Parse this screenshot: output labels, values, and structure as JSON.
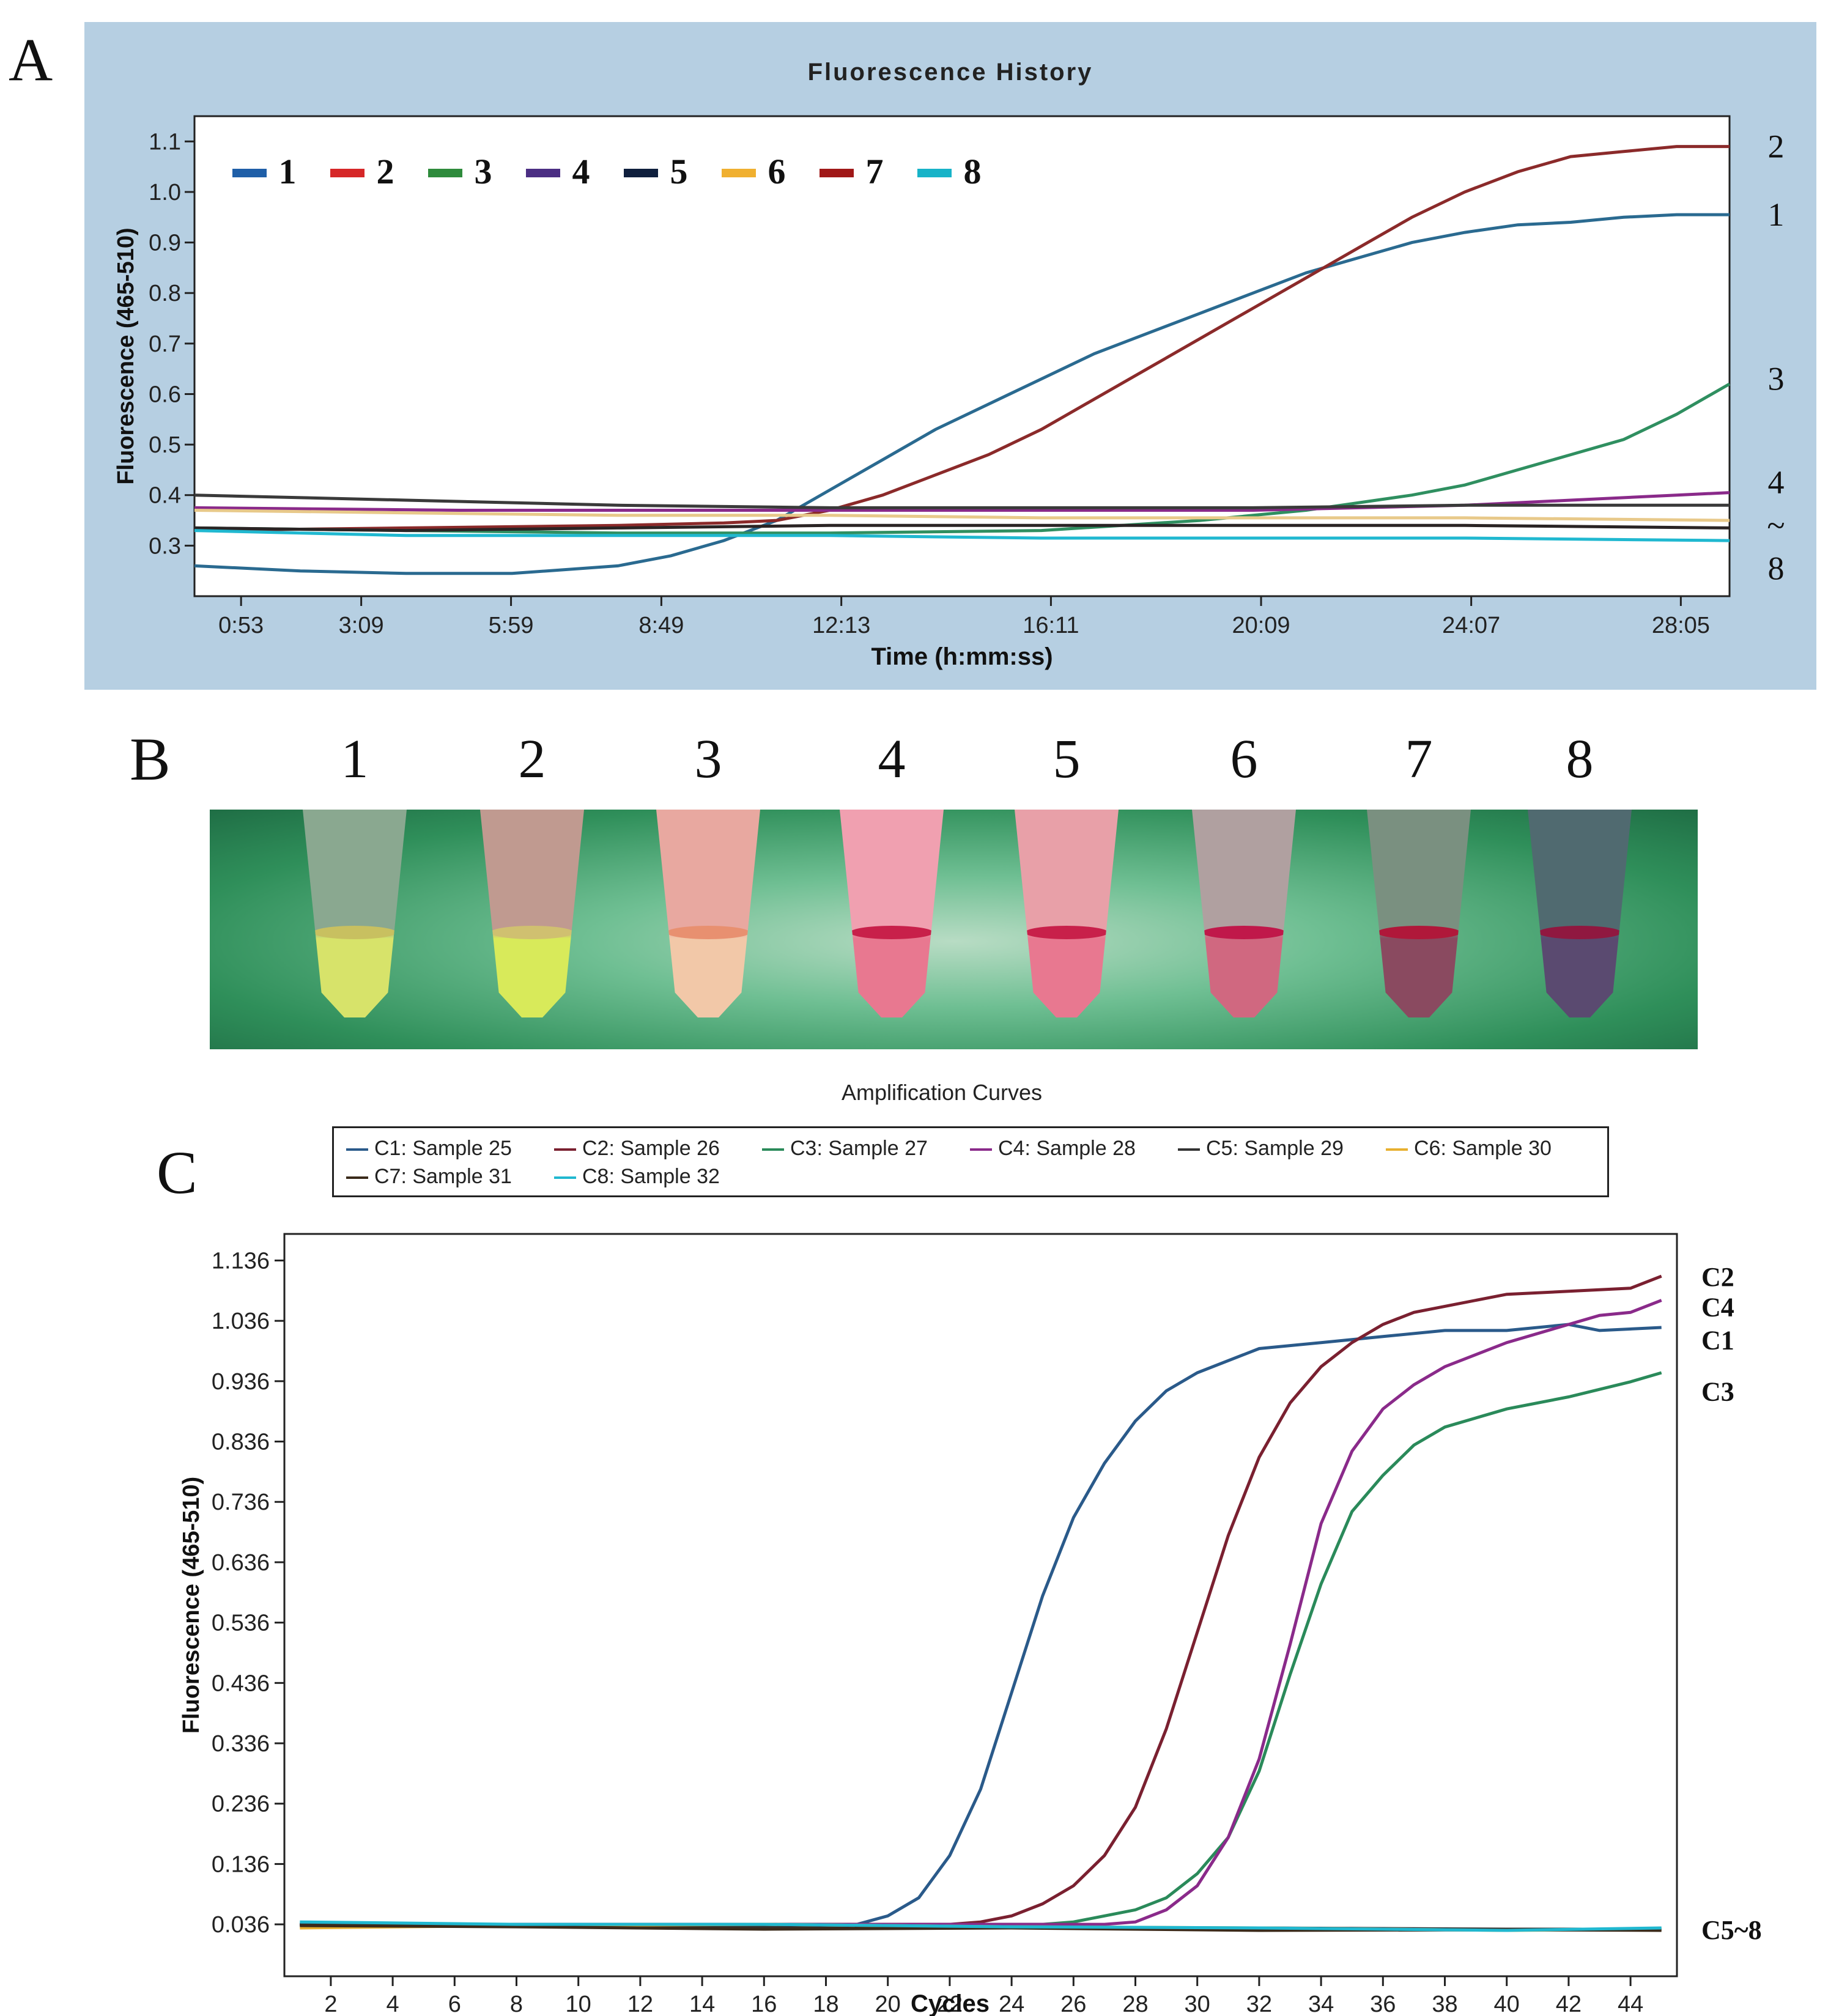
{
  "panel_labels": {
    "a": "A",
    "b": "B",
    "c": "C"
  },
  "chart_data": [
    {
      "type": "line",
      "title": "Fluorescence History",
      "xlabel": "Time (h:mm:ss)",
      "ylabel": "Fluorescence (465-510)",
      "x_unit": "minutes",
      "xlim": [
        0,
        29
      ],
      "ylim": [
        0.2,
        1.15
      ],
      "x_ticks": [
        {
          "label": "0:53",
          "value": 0.88
        },
        {
          "label": "3:09",
          "value": 3.15
        },
        {
          "label": "5:59",
          "value": 5.98
        },
        {
          "label": "8:49",
          "value": 8.82
        },
        {
          "label": "12:13",
          "value": 12.22
        },
        {
          "label": "16:11",
          "value": 16.18
        },
        {
          "label": "20:09",
          "value": 20.15
        },
        {
          "label": "24:07",
          "value": 24.12
        },
        {
          "label": "28:05",
          "value": 28.08
        }
      ],
      "y_ticks": [
        0.3,
        0.4,
        0.5,
        0.6,
        0.7,
        0.8,
        0.9,
        1.0,
        1.1
      ],
      "y_tick_labels": [
        "0.3",
        "0.4",
        "0.5",
        "0.6",
        "0.7",
        "0.8",
        "0.9",
        "1.0",
        "1.1"
      ],
      "legend": [
        {
          "label": "1",
          "color": "#1f5fa8"
        },
        {
          "label": "2",
          "color": "#d62728"
        },
        {
          "label": "3",
          "color": "#2e8b3c"
        },
        {
          "label": "4",
          "color": "#4b2e83"
        },
        {
          "label": "5",
          "color": "#0f1f3d"
        },
        {
          "label": "6",
          "color": "#f0b030"
        },
        {
          "label": "7",
          "color": "#a01818"
        },
        {
          "label": "8",
          "color": "#17b3c8"
        }
      ],
      "end_labels": [
        {
          "label": "2",
          "value": 1.09
        },
        {
          "label": "1",
          "value": 0.955
        },
        {
          "label": "3",
          "value": 0.63
        },
        {
          "label": "4",
          "value": 0.425
        },
        {
          "label": "~",
          "value": 0.34
        },
        {
          "label": "8",
          "value": 0.255
        }
      ],
      "series": [
        {
          "name": "1",
          "color": "#2a6a90",
          "x": [
            0,
            2,
            4,
            6,
            8,
            9,
            10,
            11,
            12,
            13,
            14,
            15,
            16,
            17,
            18,
            19,
            20,
            21,
            22,
            23,
            24,
            25,
            26,
            27,
            28,
            29
          ],
          "y": [
            0.26,
            0.25,
            0.245,
            0.245,
            0.26,
            0.28,
            0.31,
            0.35,
            0.41,
            0.47,
            0.53,
            0.58,
            0.63,
            0.68,
            0.72,
            0.76,
            0.8,
            0.84,
            0.87,
            0.9,
            0.92,
            0.935,
            0.94,
            0.95,
            0.955,
            0.955
          ]
        },
        {
          "name": "2",
          "color": "#8b2a2a",
          "x": [
            0,
            4,
            8,
            10,
            11,
            12,
            13,
            14,
            15,
            16,
            17,
            18,
            19,
            20,
            21,
            22,
            23,
            24,
            25,
            26,
            27,
            28,
            29
          ],
          "y": [
            0.33,
            0.335,
            0.34,
            0.345,
            0.35,
            0.37,
            0.4,
            0.44,
            0.48,
            0.53,
            0.59,
            0.65,
            0.71,
            0.77,
            0.83,
            0.89,
            0.95,
            1.0,
            1.04,
            1.07,
            1.08,
            1.09,
            1.09
          ]
        },
        {
          "name": "3",
          "color": "#2f8f60",
          "x": [
            0,
            4,
            8,
            12,
            16,
            19,
            20,
            21,
            22,
            23,
            24,
            25,
            26,
            27,
            28,
            29
          ],
          "y": [
            0.335,
            0.33,
            0.325,
            0.325,
            0.33,
            0.35,
            0.36,
            0.37,
            0.385,
            0.4,
            0.42,
            0.45,
            0.48,
            0.51,
            0.56,
            0.62
          ]
        },
        {
          "name": "4",
          "color": "#8a2a8a",
          "x": [
            0,
            5,
            10,
            15,
            20,
            24,
            26,
            28,
            29
          ],
          "y": [
            0.375,
            0.37,
            0.37,
            0.37,
            0.37,
            0.38,
            0.39,
            0.4,
            0.405
          ]
        },
        {
          "name": "5",
          "color": "#3a3a3a",
          "x": [
            0,
            4,
            8,
            12,
            16,
            20,
            24,
            29
          ],
          "y": [
            0.4,
            0.39,
            0.38,
            0.375,
            0.375,
            0.375,
            0.38,
            0.38
          ]
        },
        {
          "name": "6",
          "color": "#e8c98a",
          "x": [
            0,
            4,
            8,
            12,
            16,
            20,
            24,
            29
          ],
          "y": [
            0.37,
            0.365,
            0.36,
            0.36,
            0.355,
            0.355,
            0.355,
            0.35
          ]
        },
        {
          "name": "7",
          "color": "#2a2424",
          "x": [
            0,
            4,
            8,
            12,
            16,
            20,
            24,
            29
          ],
          "y": [
            0.335,
            0.33,
            0.335,
            0.34,
            0.34,
            0.34,
            0.34,
            0.335
          ]
        },
        {
          "name": "8",
          "color": "#20b8d0",
          "x": [
            0,
            4,
            8,
            12,
            16,
            20,
            24,
            29
          ],
          "y": [
            0.33,
            0.32,
            0.32,
            0.32,
            0.315,
            0.315,
            0.315,
            0.31
          ]
        }
      ]
    },
    {
      "type": "line",
      "title": "Amplification Curves",
      "xlabel": "Cycles",
      "ylabel": "Fluorescence (465-510)",
      "xlim": [
        0.5,
        45.5
      ],
      "ylim": [
        -0.05,
        1.18
      ],
      "x_ticks": [
        2,
        4,
        6,
        8,
        10,
        12,
        14,
        16,
        18,
        20,
        22,
        24,
        26,
        28,
        30,
        32,
        34,
        36,
        38,
        40,
        42,
        44
      ],
      "y_ticks": [
        0.036,
        0.136,
        0.236,
        0.336,
        0.436,
        0.536,
        0.636,
        0.736,
        0.836,
        0.936,
        1.036,
        1.136
      ],
      "y_tick_labels": [
        "0.036",
        "0.136",
        "0.236",
        "0.336",
        "0.436",
        "0.536",
        "0.636",
        "0.736",
        "0.836",
        "0.936",
        "1.036",
        "1.136"
      ],
      "legend": [
        {
          "label": "C1: Sample 25",
          "color": "#2a5a8a"
        },
        {
          "label": "C2: Sample 26",
          "color": "#7a2030"
        },
        {
          "label": "C3: Sample 27",
          "color": "#2a8a5a"
        },
        {
          "label": "C4: Sample 28",
          "color": "#8a2a8a"
        },
        {
          "label": "C5: Sample 29",
          "color": "#333333"
        },
        {
          "label": "C6: Sample 30",
          "color": "#e8b030"
        },
        {
          "label": "C7: Sample 31",
          "color": "#3a2a1a"
        },
        {
          "label": "C8: Sample 32",
          "color": "#20b8d0"
        }
      ],
      "end_labels": [
        {
          "label": "C2",
          "value": 1.11
        },
        {
          "label": "C4",
          "value": 1.06
        },
        {
          "label": "C1",
          "value": 1.005
        },
        {
          "label": "C3",
          "value": 0.92
        },
        {
          "label": "C5~8",
          "value": 0.028
        }
      ],
      "series": [
        {
          "name": "C1: Sample 25",
          "color": "#2a5a8a",
          "x": [
            1,
            19,
            20,
            21,
            22,
            23,
            24,
            25,
            26,
            27,
            28,
            29,
            30,
            32,
            34,
            36,
            38,
            40,
            42,
            43,
            45
          ],
          "y": [
            0.036,
            0.036,
            0.05,
            0.08,
            0.15,
            0.26,
            0.42,
            0.58,
            0.71,
            0.8,
            0.87,
            0.92,
            0.95,
            0.99,
            1.0,
            1.01,
            1.02,
            1.02,
            1.03,
            1.02,
            1.025
          ]
        },
        {
          "name": "C2: Sample 26",
          "color": "#7a2030",
          "x": [
            1,
            22,
            23,
            24,
            25,
            26,
            27,
            28,
            29,
            30,
            31,
            32,
            33,
            34,
            35,
            36,
            37,
            38,
            40,
            42,
            44,
            45
          ],
          "y": [
            0.036,
            0.036,
            0.04,
            0.05,
            0.07,
            0.1,
            0.15,
            0.23,
            0.36,
            0.52,
            0.68,
            0.81,
            0.9,
            0.96,
            1.0,
            1.03,
            1.05,
            1.06,
            1.08,
            1.085,
            1.09,
            1.11
          ]
        },
        {
          "name": "C3: Sample 27",
          "color": "#2a8a5a",
          "x": [
            1,
            25,
            26,
            27,
            28,
            29,
            30,
            31,
            32,
            33,
            34,
            35,
            36,
            37,
            38,
            40,
            42,
            44,
            45
          ],
          "y": [
            0.036,
            0.036,
            0.04,
            0.05,
            0.06,
            0.08,
            0.12,
            0.18,
            0.29,
            0.45,
            0.6,
            0.72,
            0.78,
            0.83,
            0.86,
            0.89,
            0.91,
            0.935,
            0.95
          ]
        },
        {
          "name": "C4: Sample 28",
          "color": "#8a2a8a",
          "x": [
            1,
            27,
            28,
            29,
            30,
            31,
            32,
            33,
            34,
            35,
            36,
            37,
            38,
            40,
            42,
            43,
            44,
            45
          ],
          "y": [
            0.036,
            0.036,
            0.04,
            0.06,
            0.1,
            0.18,
            0.31,
            0.5,
            0.7,
            0.82,
            0.89,
            0.93,
            0.96,
            1.0,
            1.03,
            1.045,
            1.05,
            1.07
          ]
        },
        {
          "name": "C5: Sample 29",
          "color": "#333333",
          "x": [
            1,
            8,
            16,
            24,
            32,
            40,
            45
          ],
          "y": [
            0.036,
            0.034,
            0.032,
            0.03,
            0.03,
            0.028,
            0.028
          ]
        },
        {
          "name": "C6: Sample 30",
          "color": "#e8b030",
          "x": [
            1,
            8,
            16,
            24,
            32,
            40,
            45
          ],
          "y": [
            0.03,
            0.034,
            0.036,
            0.032,
            0.03,
            0.026,
            0.028
          ]
        },
        {
          "name": "C7: Sample 31",
          "color": "#3a2a1a",
          "x": [
            1,
            8,
            16,
            24,
            32,
            40,
            45
          ],
          "y": [
            0.034,
            0.032,
            0.028,
            0.03,
            0.026,
            0.027,
            0.026
          ]
        },
        {
          "name": "C8: Sample 32",
          "color": "#20b8d0",
          "x": [
            1,
            8,
            16,
            24,
            32,
            40,
            45
          ],
          "y": [
            0.04,
            0.036,
            0.036,
            0.032,
            0.03,
            0.026,
            0.03
          ]
        }
      ]
    }
  ],
  "tubes": [
    {
      "label": "1",
      "liquid": "#d7e36a",
      "band": "#c8c060",
      "body": "#8aa890"
    },
    {
      "label": "2",
      "liquid": "#d8ea5a",
      "band": "#d0c070",
      "body": "#c09a90"
    },
    {
      "label": "3",
      "liquid": "#f2c8a8",
      "band": "#e89070",
      "body": "#e8a8a0"
    },
    {
      "label": "4",
      "liquid": "#e87890",
      "band": "#c8204a",
      "body": "#f0a0b0"
    },
    {
      "label": "5",
      "liquid": "#e87890",
      "band": "#c8204a",
      "body": "#e8a0a8"
    },
    {
      "label": "6",
      "liquid": "#d06880",
      "band": "#c0184a",
      "body": "#b0a0a0"
    },
    {
      "label": "7",
      "liquid": "#8a4a60",
      "band": "#b0183a",
      "body": "#7a9080"
    },
    {
      "label": "8",
      "liquid": "#5a4a70",
      "band": "#901840",
      "body": "#506a70"
    }
  ]
}
